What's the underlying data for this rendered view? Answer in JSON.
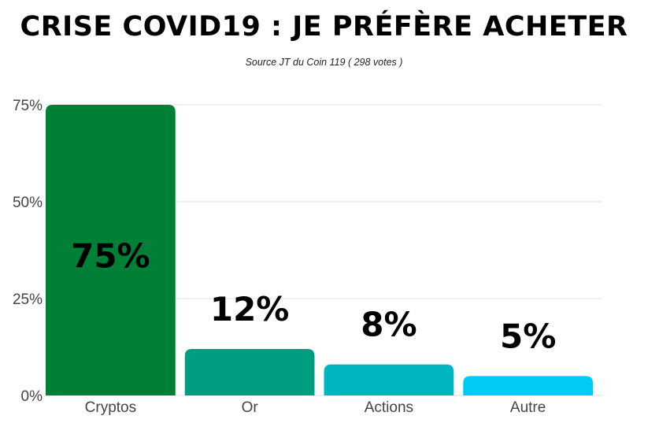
{
  "chart_data": {
    "type": "bar",
    "title": "CRISE COVID19 : JE PRÉFÈRE ACHETER",
    "subtitle": "Source JT du Coin 119 ( 298 votes )",
    "categories": [
      "Cryptos",
      "Or",
      "Actions",
      "Autre"
    ],
    "values": [
      75,
      12,
      8,
      5
    ],
    "data_labels": [
      "75%",
      "12%",
      "8%",
      "5%"
    ],
    "colors": [
      "#007f37",
      "#009e80",
      "#00b5c1",
      "#00cbf5"
    ],
    "ylim": [
      0,
      75
    ],
    "yticks": [
      0,
      25,
      50,
      75
    ],
    "ytick_labels": [
      "0%",
      "25%",
      "50%",
      "75%"
    ],
    "grid": true,
    "legend": "none"
  }
}
